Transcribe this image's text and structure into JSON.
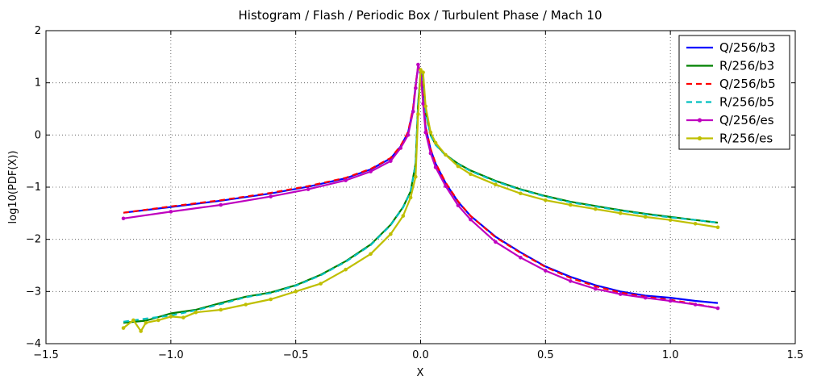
{
  "chart_data": {
    "type": "line",
    "title": "Histogram / Flash / Periodic Box / Turbulent Phase / Mach 10",
    "xlabel": "X",
    "ylabel": "log10(PDF(X))",
    "xlim": [
      -1.5,
      1.5
    ],
    "ylim": [
      -4,
      2
    ],
    "xticks": [
      -1.5,
      -1.0,
      -0.5,
      0.0,
      0.5,
      1.0,
      1.5
    ],
    "xtick_labels": [
      "−1.5",
      "−1.0",
      "−0.5",
      "0.0",
      "0.5",
      "1.0",
      "1.5"
    ],
    "yticks": [
      -4,
      -3,
      -2,
      -1,
      0,
      1,
      2
    ],
    "ytick_labels": [
      "−4",
      "−3",
      "−2",
      "−1",
      "0",
      "1",
      "2"
    ],
    "grid": true,
    "legend_position": "top-right",
    "series": [
      {
        "name": "Q/256/b3",
        "color": "#0000ff",
        "style": "solid",
        "marker": false,
        "x": [
          -1.19,
          -1.0,
          -0.8,
          -0.6,
          -0.45,
          -0.3,
          -0.2,
          -0.12,
          -0.08,
          -0.05,
          -0.03,
          -0.02,
          -0.01,
          0.0,
          0.01,
          0.02,
          0.04,
          0.06,
          0.1,
          0.15,
          0.2,
          0.3,
          0.4,
          0.5,
          0.6,
          0.7,
          0.8,
          0.9,
          1.0,
          1.1,
          1.19
        ],
        "y": [
          -1.49,
          -1.38,
          -1.26,
          -1.12,
          -0.99,
          -0.83,
          -0.66,
          -0.45,
          -0.22,
          0.05,
          0.5,
          0.95,
          1.3,
          1.25,
          0.7,
          0.15,
          -0.28,
          -0.55,
          -0.92,
          -1.28,
          -1.55,
          -1.95,
          -2.25,
          -2.52,
          -2.72,
          -2.88,
          -3.0,
          -3.08,
          -3.12,
          -3.18,
          -3.22
        ]
      },
      {
        "name": "R/256/b3",
        "color": "#008000",
        "style": "solid",
        "marker": false,
        "x": [
          -1.19,
          -1.1,
          -1.0,
          -0.9,
          -0.8,
          -0.7,
          -0.6,
          -0.5,
          -0.4,
          -0.3,
          -0.2,
          -0.12,
          -0.07,
          -0.04,
          -0.02,
          -0.01,
          0.0,
          0.01,
          0.02,
          0.04,
          0.06,
          0.1,
          0.15,
          0.2,
          0.3,
          0.4,
          0.5,
          0.6,
          0.7,
          0.8,
          0.9,
          1.0,
          1.1,
          1.19
        ],
        "y": [
          -3.6,
          -3.56,
          -3.42,
          -3.35,
          -3.22,
          -3.1,
          -3.02,
          -2.88,
          -2.68,
          -2.42,
          -2.1,
          -1.72,
          -1.38,
          -1.08,
          -0.55,
          0.6,
          1.2,
          1.15,
          0.45,
          0.0,
          -0.18,
          -0.38,
          -0.55,
          -0.68,
          -0.88,
          -1.04,
          -1.17,
          -1.28,
          -1.36,
          -1.44,
          -1.51,
          -1.57,
          -1.63,
          -1.68
        ]
      },
      {
        "name": "Q/256/b5",
        "color": "#ff0000",
        "style": "dashed",
        "marker": false,
        "x": [
          -1.19,
          -1.0,
          -0.8,
          -0.6,
          -0.45,
          -0.3,
          -0.2,
          -0.12,
          -0.08,
          -0.05,
          -0.03,
          -0.02,
          -0.01,
          0.0,
          0.01,
          0.02,
          0.04,
          0.06,
          0.1,
          0.15,
          0.2,
          0.3,
          0.4,
          0.5,
          0.6,
          0.7,
          0.8,
          0.9,
          1.0,
          1.1,
          1.19
        ],
        "y": [
          -1.49,
          -1.37,
          -1.25,
          -1.11,
          -0.98,
          -0.82,
          -0.65,
          -0.44,
          -0.21,
          0.06,
          0.52,
          0.97,
          1.31,
          1.26,
          0.72,
          0.16,
          -0.27,
          -0.54,
          -0.91,
          -1.27,
          -1.55,
          -1.96,
          -2.26,
          -2.53,
          -2.74,
          -2.9,
          -3.02,
          -3.1,
          -3.16,
          -3.24,
          -3.32
        ]
      },
      {
        "name": "R/256/b5",
        "color": "#00bfbf",
        "style": "dashed",
        "marker": false,
        "x": [
          -1.19,
          -1.1,
          -1.0,
          -0.9,
          -0.8,
          -0.7,
          -0.6,
          -0.5,
          -0.4,
          -0.3,
          -0.2,
          -0.12,
          -0.07,
          -0.04,
          -0.02,
          -0.01,
          0.0,
          0.01,
          0.02,
          0.04,
          0.06,
          0.1,
          0.15,
          0.2,
          0.3,
          0.4,
          0.5,
          0.6,
          0.7,
          0.8,
          0.9,
          1.0,
          1.1,
          1.19
        ],
        "y": [
          -3.58,
          -3.52,
          -3.46,
          -3.36,
          -3.24,
          -3.11,
          -3.03,
          -2.89,
          -2.69,
          -2.43,
          -2.11,
          -1.73,
          -1.39,
          -1.09,
          -0.56,
          0.58,
          1.19,
          1.14,
          0.44,
          -0.01,
          -0.19,
          -0.39,
          -0.56,
          -0.69,
          -0.89,
          -1.05,
          -1.18,
          -1.29,
          -1.37,
          -1.45,
          -1.52,
          -1.58,
          -1.63,
          -1.68
        ]
      },
      {
        "name": "Q/256/es",
        "color": "#bf00bf",
        "style": "solid",
        "marker": true,
        "x": [
          -1.19,
          -1.0,
          -0.8,
          -0.6,
          -0.45,
          -0.3,
          -0.2,
          -0.12,
          -0.08,
          -0.05,
          -0.03,
          -0.02,
          -0.01,
          0.0,
          0.01,
          0.02,
          0.04,
          0.06,
          0.1,
          0.15,
          0.2,
          0.3,
          0.4,
          0.5,
          0.6,
          0.7,
          0.8,
          0.9,
          1.0,
          1.1,
          1.19
        ],
        "y": [
          -1.6,
          -1.47,
          -1.34,
          -1.18,
          -1.04,
          -0.87,
          -0.7,
          -0.5,
          -0.25,
          0.0,
          0.45,
          0.9,
          1.35,
          1.2,
          0.6,
          0.05,
          -0.35,
          -0.62,
          -0.98,
          -1.35,
          -1.62,
          -2.05,
          -2.35,
          -2.6,
          -2.8,
          -2.95,
          -3.05,
          -3.12,
          -3.18,
          -3.25,
          -3.32
        ]
      },
      {
        "name": "R/256/es",
        "color": "#bfbf00",
        "style": "solid",
        "marker": true,
        "x": [
          -1.19,
          -1.15,
          -1.12,
          -1.1,
          -1.05,
          -1.0,
          -0.95,
          -0.9,
          -0.8,
          -0.7,
          -0.6,
          -0.5,
          -0.4,
          -0.3,
          -0.2,
          -0.12,
          -0.07,
          -0.04,
          -0.02,
          -0.01,
          0.0,
          0.01,
          0.02,
          0.04,
          0.06,
          0.1,
          0.15,
          0.2,
          0.3,
          0.4,
          0.5,
          0.6,
          0.7,
          0.8,
          0.9,
          1.0,
          1.1,
          1.19
        ],
        "y": [
          -3.7,
          -3.55,
          -3.76,
          -3.6,
          -3.55,
          -3.48,
          -3.5,
          -3.4,
          -3.35,
          -3.25,
          -3.15,
          -3.0,
          -2.85,
          -2.58,
          -2.28,
          -1.9,
          -1.55,
          -1.2,
          -0.8,
          0.4,
          1.25,
          1.2,
          0.55,
          0.05,
          -0.15,
          -0.38,
          -0.6,
          -0.75,
          -0.95,
          -1.12,
          -1.25,
          -1.34,
          -1.42,
          -1.5,
          -1.57,
          -1.63,
          -1.7,
          -1.77
        ]
      }
    ]
  }
}
